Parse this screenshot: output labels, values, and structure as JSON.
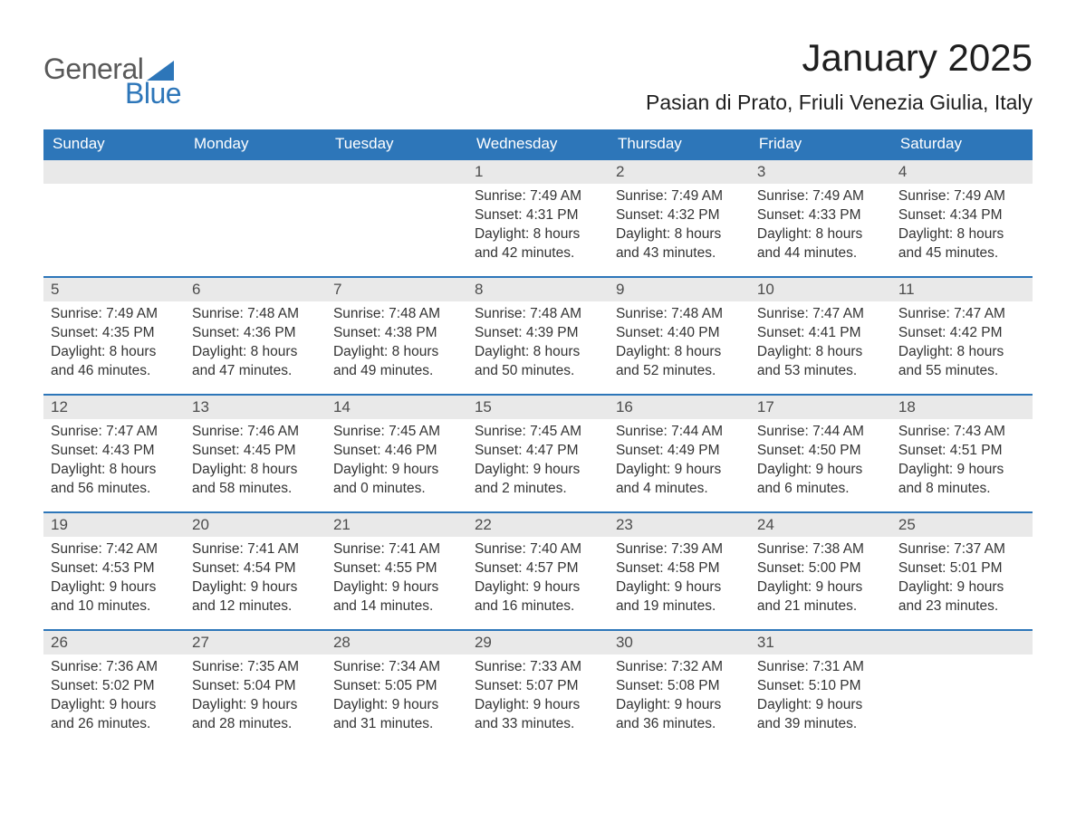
{
  "logo": {
    "word1": "General",
    "word2": "Blue",
    "accent_color": "#2d76b9",
    "text_color": "#595959"
  },
  "title": "January 2025",
  "location": "Pasian di Prato, Friuli Venezia Giulia, Italy",
  "weekday_headers": [
    "Sunday",
    "Monday",
    "Tuesday",
    "Wednesday",
    "Thursday",
    "Friday",
    "Saturday"
  ],
  "labels": {
    "sunrise": "Sunrise: ",
    "sunset": "Sunset: ",
    "daylight_prefix": "Daylight: ",
    "and": " and "
  },
  "colors": {
    "header_bg": "#2d76b9",
    "header_text": "#ffffff",
    "daynum_bg": "#e9e9e9",
    "daynum_text": "#4d4d4d",
    "body_text": "#333333",
    "row_border": "#2d76b9",
    "page_bg": "#ffffff"
  },
  "typography": {
    "title_fontsize": 42,
    "location_fontsize": 23,
    "header_fontsize": 17,
    "cell_fontsize": 15.5
  },
  "grid": {
    "rows": 5,
    "cols": 7,
    "first_day_col": 3,
    "last_day": 31
  },
  "days": [
    {
      "n": 1,
      "sunrise": "7:49 AM",
      "sunset": "4:31 PM",
      "dl_h": 8,
      "dl_m": 42
    },
    {
      "n": 2,
      "sunrise": "7:49 AM",
      "sunset": "4:32 PM",
      "dl_h": 8,
      "dl_m": 43
    },
    {
      "n": 3,
      "sunrise": "7:49 AM",
      "sunset": "4:33 PM",
      "dl_h": 8,
      "dl_m": 44
    },
    {
      "n": 4,
      "sunrise": "7:49 AM",
      "sunset": "4:34 PM",
      "dl_h": 8,
      "dl_m": 45
    },
    {
      "n": 5,
      "sunrise": "7:49 AM",
      "sunset": "4:35 PM",
      "dl_h": 8,
      "dl_m": 46
    },
    {
      "n": 6,
      "sunrise": "7:48 AM",
      "sunset": "4:36 PM",
      "dl_h": 8,
      "dl_m": 47
    },
    {
      "n": 7,
      "sunrise": "7:48 AM",
      "sunset": "4:38 PM",
      "dl_h": 8,
      "dl_m": 49
    },
    {
      "n": 8,
      "sunrise": "7:48 AM",
      "sunset": "4:39 PM",
      "dl_h": 8,
      "dl_m": 50
    },
    {
      "n": 9,
      "sunrise": "7:48 AM",
      "sunset": "4:40 PM",
      "dl_h": 8,
      "dl_m": 52
    },
    {
      "n": 10,
      "sunrise": "7:47 AM",
      "sunset": "4:41 PM",
      "dl_h": 8,
      "dl_m": 53
    },
    {
      "n": 11,
      "sunrise": "7:47 AM",
      "sunset": "4:42 PM",
      "dl_h": 8,
      "dl_m": 55
    },
    {
      "n": 12,
      "sunrise": "7:47 AM",
      "sunset": "4:43 PM",
      "dl_h": 8,
      "dl_m": 56
    },
    {
      "n": 13,
      "sunrise": "7:46 AM",
      "sunset": "4:45 PM",
      "dl_h": 8,
      "dl_m": 58
    },
    {
      "n": 14,
      "sunrise": "7:45 AM",
      "sunset": "4:46 PM",
      "dl_h": 9,
      "dl_m": 0
    },
    {
      "n": 15,
      "sunrise": "7:45 AM",
      "sunset": "4:47 PM",
      "dl_h": 9,
      "dl_m": 2
    },
    {
      "n": 16,
      "sunrise": "7:44 AM",
      "sunset": "4:49 PM",
      "dl_h": 9,
      "dl_m": 4
    },
    {
      "n": 17,
      "sunrise": "7:44 AM",
      "sunset": "4:50 PM",
      "dl_h": 9,
      "dl_m": 6
    },
    {
      "n": 18,
      "sunrise": "7:43 AM",
      "sunset": "4:51 PM",
      "dl_h": 9,
      "dl_m": 8
    },
    {
      "n": 19,
      "sunrise": "7:42 AM",
      "sunset": "4:53 PM",
      "dl_h": 9,
      "dl_m": 10
    },
    {
      "n": 20,
      "sunrise": "7:41 AM",
      "sunset": "4:54 PM",
      "dl_h": 9,
      "dl_m": 12
    },
    {
      "n": 21,
      "sunrise": "7:41 AM",
      "sunset": "4:55 PM",
      "dl_h": 9,
      "dl_m": 14
    },
    {
      "n": 22,
      "sunrise": "7:40 AM",
      "sunset": "4:57 PM",
      "dl_h": 9,
      "dl_m": 16
    },
    {
      "n": 23,
      "sunrise": "7:39 AM",
      "sunset": "4:58 PM",
      "dl_h": 9,
      "dl_m": 19
    },
    {
      "n": 24,
      "sunrise": "7:38 AM",
      "sunset": "5:00 PM",
      "dl_h": 9,
      "dl_m": 21
    },
    {
      "n": 25,
      "sunrise": "7:37 AM",
      "sunset": "5:01 PM",
      "dl_h": 9,
      "dl_m": 23
    },
    {
      "n": 26,
      "sunrise": "7:36 AM",
      "sunset": "5:02 PM",
      "dl_h": 9,
      "dl_m": 26
    },
    {
      "n": 27,
      "sunrise": "7:35 AM",
      "sunset": "5:04 PM",
      "dl_h": 9,
      "dl_m": 28
    },
    {
      "n": 28,
      "sunrise": "7:34 AM",
      "sunset": "5:05 PM",
      "dl_h": 9,
      "dl_m": 31
    },
    {
      "n": 29,
      "sunrise": "7:33 AM",
      "sunset": "5:07 PM",
      "dl_h": 9,
      "dl_m": 33
    },
    {
      "n": 30,
      "sunrise": "7:32 AM",
      "sunset": "5:08 PM",
      "dl_h": 9,
      "dl_m": 36
    },
    {
      "n": 31,
      "sunrise": "7:31 AM",
      "sunset": "5:10 PM",
      "dl_h": 9,
      "dl_m": 39
    }
  ]
}
